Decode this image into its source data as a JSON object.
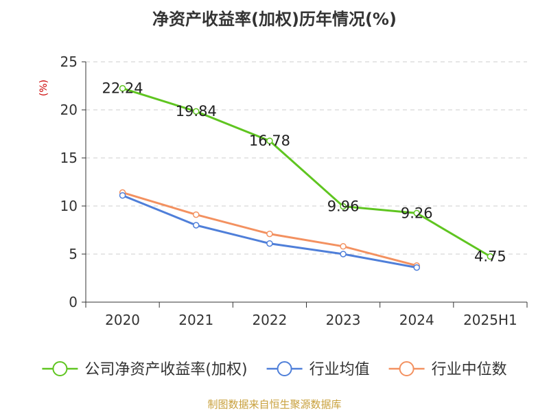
{
  "chart_data": {
    "type": "line",
    "title": "净资产收益率(加权)历年情况(%)",
    "ylabel": "(%)",
    "xlabel": "",
    "categories": [
      "2020",
      "2021",
      "2022",
      "2023",
      "2024",
      "2025H1"
    ],
    "ylim": [
      0,
      25
    ],
    "yticks": [
      0,
      5,
      10,
      15,
      20,
      25
    ],
    "grid": true,
    "legend_position": "bottom",
    "series": [
      {
        "name": "公司净资产收益率(加权)",
        "color": "#5fc520",
        "values": [
          22.24,
          19.84,
          16.78,
          9.96,
          9.26,
          4.75
        ],
        "labels": [
          "22.24",
          "19.84",
          "16.78",
          "9.96",
          "9.26",
          "4.75"
        ]
      },
      {
        "name": "行业均值",
        "color": "#4f7fd9",
        "values": [
          11.1,
          8.0,
          6.1,
          5.0,
          3.6,
          null
        ]
      },
      {
        "name": "行业中位数",
        "color": "#f39160",
        "values": [
          11.4,
          9.1,
          7.1,
          5.8,
          3.8,
          null
        ]
      }
    ]
  },
  "source": "制图数据来自恒生聚源数据库"
}
